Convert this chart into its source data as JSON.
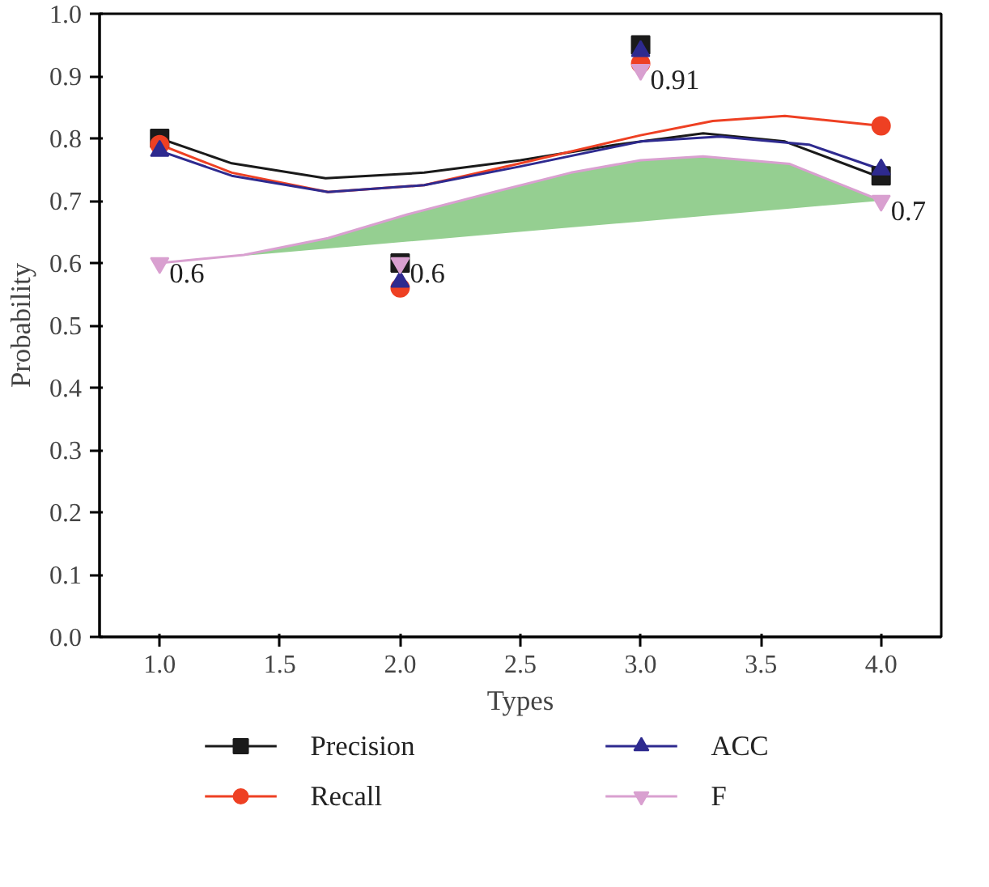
{
  "chart_data": {
    "type": "scatter",
    "xlabel": "Types",
    "ylabel": "Probability",
    "x": [
      1,
      2,
      3,
      4
    ],
    "xlim": [
      0.75,
      4.25
    ],
    "xticks": [
      {
        "value": 1,
        "label": "1.0"
      },
      {
        "value": 1.5,
        "label": "1.5"
      },
      {
        "value": 2,
        "label": "2.0"
      },
      {
        "value": 2.5,
        "label": "2.5"
      },
      {
        "value": 3,
        "label": "3.0"
      },
      {
        "value": 3.5,
        "label": "3.5"
      },
      {
        "value": 4,
        "label": "4.0"
      }
    ],
    "ylim": [
      0,
      1
    ],
    "yticks": [
      {
        "value": 0,
        "label": "0.0"
      },
      0.1,
      0.2,
      0.3,
      0.4,
      0.5,
      0.6,
      0.7,
      0.8,
      0.9,
      {
        "value": 1,
        "label": "1.0"
      }
    ],
    "grid": false,
    "legend": "bottom",
    "series": [
      {
        "name": "Precision",
        "color": "#1a1a1a",
        "marker": "square",
        "values": [
          0.8,
          0.6,
          0.95,
          0.74
        ]
      },
      {
        "name": "Recall",
        "color": "#ee4023",
        "marker": "circle",
        "values": [
          0.79,
          0.56,
          0.92,
          0.82
        ]
      },
      {
        "name": "ACC",
        "color": "#2e2a8f",
        "marker": "triangle",
        "values": [
          0.78,
          0.57,
          0.94,
          0.75
        ]
      },
      {
        "name": "F",
        "color": "#d9a0d0",
        "marker": "triangle",
        "values": [
          0.6,
          0.6,
          0.91,
          0.7
        ],
        "value_labels": [
          "0.6",
          "0.6",
          "0.91",
          "0.7"
        ]
      },
      {
        "type": "line",
        "color": "#1a1a1a",
        "x": [
          1,
          1.3,
          1.69,
          2.1,
          2.5,
          2.9,
          3.26,
          3.6,
          4
        ],
        "values": [
          0.8,
          0.76,
          0.736,
          0.745,
          0.765,
          0.79,
          0.808,
          0.795,
          0.737
        ]
      },
      {
        "type": "line",
        "color": "#ee4023",
        "x": [
          1,
          1.3,
          1.7,
          2.1,
          2.5,
          3,
          3.3,
          3.6,
          4
        ],
        "values": [
          0.79,
          0.745,
          0.714,
          0.725,
          0.76,
          0.805,
          0.828,
          0.836,
          0.82
        ]
      },
      {
        "type": "line",
        "color": "#2e2a8f",
        "x": [
          1,
          1.3,
          1.7,
          2.1,
          2.5,
          3,
          3.33,
          3.7,
          4
        ],
        "values": [
          0.78,
          0.74,
          0.714,
          0.725,
          0.755,
          0.795,
          0.803,
          0.79,
          0.75
        ]
      },
      {
        "type": "line",
        "color": "#d9a0d0",
        "x": [
          1,
          1.35,
          1.7,
          2.03,
          2.4,
          2.71,
          3,
          3.26,
          3.62,
          4
        ],
        "values": [
          0.6,
          0.613,
          0.64,
          0.678,
          0.715,
          0.745,
          0.765,
          0.771,
          0.759,
          0.7
        ],
        "lower": [
          0.6,
          0.6117,
          0.6233,
          0.6343,
          0.6467,
          0.657,
          0.6667,
          0.6753,
          0.6873,
          0.7
        ],
        "upper": [
          0.6,
          0.613,
          0.64,
          0.678,
          0.715,
          0.745,
          0.765,
          0.771,
          0.759,
          0.7
        ]
      }
    ]
  }
}
